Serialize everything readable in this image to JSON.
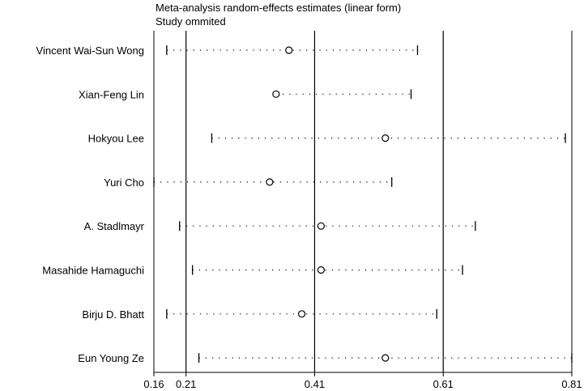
{
  "chart_data": {
    "type": "forest",
    "title": "Meta-analysis random-effects estimates (linear form)",
    "subtitle": "Study ommited",
    "x_ticks": [
      0.16,
      0.21,
      0.41,
      0.61,
      0.81
    ],
    "x_tick_labels": [
      "0.16",
      "0.21",
      "0.41",
      "0.61",
      "0.81"
    ],
    "xlim": [
      0.16,
      0.81
    ],
    "reference_lines": [
      0.21,
      0.41,
      0.61
    ],
    "studies": [
      {
        "label": "Vincent Wai-Sun Wong",
        "lower": 0.18,
        "estimate": 0.37,
        "upper": 0.57
      },
      {
        "label": "Xian-Feng Lin",
        "lower": null,
        "estimate": 0.35,
        "upper": 0.56
      },
      {
        "label": "Hokyou Lee",
        "lower": 0.25,
        "estimate": 0.52,
        "upper": 0.8
      },
      {
        "label": "Yuri Cho",
        "lower": 0.16,
        "estimate": 0.34,
        "upper": 0.53
      },
      {
        "label": "A. Stadlmayr",
        "lower": 0.2,
        "estimate": 0.42,
        "upper": 0.66
      },
      {
        "label": "Masahide Hamaguchi",
        "lower": 0.22,
        "estimate": 0.42,
        "upper": 0.64
      },
      {
        "label": "Birju D. Bhatt",
        "lower": 0.18,
        "estimate": 0.39,
        "upper": 0.6
      },
      {
        "label": "Eun Young Ze",
        "lower": 0.23,
        "estimate": 0.52,
        "upper": 0.81
      }
    ]
  }
}
